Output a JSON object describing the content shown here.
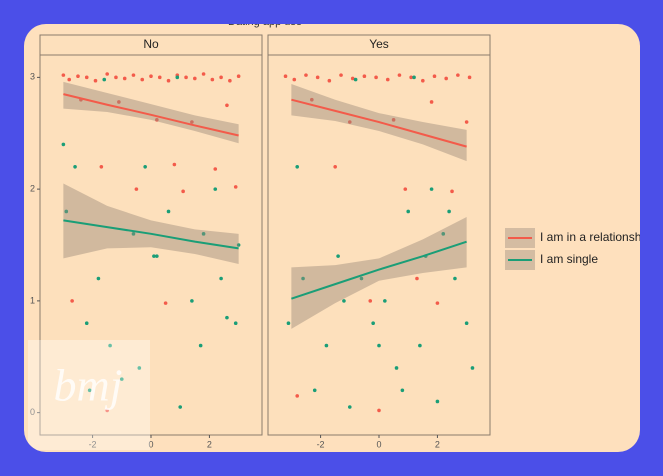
{
  "title": "Dating app use",
  "watermark": "bmj",
  "legend": [
    {
      "name": "I am in a relationship",
      "color": "#f35b4a"
    },
    {
      "name": "I am single",
      "color": "#1a9e77"
    }
  ],
  "chart_data": [
    {
      "type": "scatter",
      "title": "No",
      "xlim": [
        -3.8,
        3.8
      ],
      "ylim": [
        -0.2,
        3.2
      ],
      "xticks": [
        -2,
        0,
        2
      ],
      "yticks": [
        0,
        1,
        2,
        3
      ],
      "series": [
        {
          "x": [
            -3,
            -2.8,
            -2.5,
            -2.2,
            -1.9,
            -1.5,
            -1.2,
            -0.9,
            -0.6,
            -0.3,
            0,
            0.3,
            0.6,
            0.9,
            1.2,
            1.5,
            1.8,
            2.1,
            2.4,
            2.7,
            3,
            -2.4,
            -1.1,
            0.2,
            1.4,
            2.6,
            -1.7,
            0.8,
            2.2,
            -0.5,
            1.1,
            2.9,
            -2.7,
            0.5,
            -1.5
          ],
          "values": [
            3.02,
            2.98,
            3.01,
            3,
            2.97,
            3.03,
            3,
            2.99,
            3.02,
            2.98,
            3.01,
            3,
            2.97,
            3.02,
            3,
            2.99,
            3.03,
            2.98,
            3,
            2.97,
            3.01,
            2.8,
            2.78,
            2.62,
            2.6,
            2.75,
            2.2,
            2.22,
            2.18,
            2,
            1.98,
            2.02,
            1,
            0.98,
            0.02
          ],
          "fit_x": [
            -3,
            -1.5,
            0,
            1.5,
            3
          ],
          "fit": [
            2.85,
            2.755,
            2.665,
            2.57,
            2.48
          ],
          "fit_lower": [
            2.72,
            2.69,
            2.62,
            2.52,
            2.41
          ],
          "fit_upper": [
            2.96,
            2.86,
            2.76,
            2.66,
            2.58
          ]
        },
        {
          "x": [
            -3,
            -2.6,
            -2.2,
            -1.8,
            -1.4,
            -1,
            -0.6,
            -0.2,
            0.2,
            0.6,
            1,
            1.4,
            1.8,
            2.2,
            2.6,
            3,
            -2.9,
            -1.6,
            -0.4,
            0.9,
            2.4,
            -2.1,
            0.1,
            1.7,
            2.9
          ],
          "values": [
            2.4,
            2.2,
            0.8,
            1.2,
            0.6,
            0.3,
            1.6,
            2.2,
            1.4,
            1.8,
            0.05,
            1,
            1.6,
            2,
            0.85,
            1.5,
            1.8,
            2.98,
            0.4,
            3,
            1.2,
            0.2,
            1.4,
            0.6,
            0.8
          ],
          "fit_x": [
            -3,
            -1.5,
            0,
            1.5,
            3
          ],
          "fit": [
            1.72,
            1.66,
            1.6,
            1.53,
            1.47
          ],
          "fit_lower": [
            1.38,
            1.47,
            1.48,
            1.42,
            1.33
          ],
          "fit_upper": [
            2.05,
            1.85,
            1.72,
            1.64,
            1.6
          ]
        }
      ]
    },
    {
      "type": "scatter",
      "title": "Yes",
      "xlim": [
        -3.8,
        3.8
      ],
      "ylim": [
        -0.2,
        3.2
      ],
      "xticks": [
        -2,
        0,
        2
      ],
      "series": [
        {
          "x": [
            -3.2,
            -2.9,
            -2.5,
            -2.1,
            -1.7,
            -1.3,
            -0.9,
            -0.5,
            -0.1,
            0.3,
            0.7,
            1.1,
            1.5,
            1.9,
            2.3,
            2.7,
            3.1,
            -2.3,
            -1,
            0.5,
            1.8,
            3,
            -1.5,
            0.9,
            2.5,
            -0.3,
            2,
            -2.8,
            1.3,
            0
          ],
          "values": [
            3.01,
            2.98,
            3.02,
            3,
            2.97,
            3.02,
            2.99,
            3.01,
            3,
            2.98,
            3.02,
            3,
            2.97,
            3.01,
            2.99,
            3.02,
            3,
            2.8,
            2.6,
            2.62,
            2.78,
            2.6,
            2.2,
            2,
            1.98,
            1,
            0.98,
            0.15,
            1.2,
            0.02
          ],
          "fit_x": [
            -3,
            -1.5,
            0,
            1.5,
            3
          ],
          "fit": [
            2.8,
            2.7,
            2.6,
            2.49,
            2.38
          ],
          "fit_lower": [
            2.66,
            2.61,
            2.52,
            2.4,
            2.25
          ],
          "fit_upper": [
            2.94,
            2.8,
            2.68,
            2.6,
            2.53
          ]
        },
        {
          "x": [
            -3.1,
            -2.6,
            -2.2,
            -1.8,
            -1.4,
            -1,
            -0.6,
            -0.2,
            0.2,
            0.6,
            1,
            1.4,
            1.8,
            2.2,
            2.6,
            3,
            -2.8,
            -1.2,
            0,
            0.8,
            1.6,
            2.4,
            3.2,
            -0.8,
            1.2,
            2
          ],
          "values": [
            0.8,
            1.2,
            0.2,
            0.6,
            1.4,
            0.05,
            1.2,
            0.8,
            1,
            0.4,
            1.8,
            0.6,
            2,
            1.6,
            1.2,
            0.8,
            2.2,
            1,
            0.6,
            0.2,
            1.4,
            1.8,
            0.4,
            2.98,
            3,
            0.1
          ],
          "fit_x": [
            -3,
            -1.5,
            0,
            1.5,
            3
          ],
          "fit": [
            1.02,
            1.15,
            1.28,
            1.4,
            1.53
          ],
          "fit_lower": [
            0.75,
            0.98,
            1.18,
            1.25,
            1.3
          ],
          "fit_upper": [
            1.3,
            1.32,
            1.38,
            1.55,
            1.75
          ]
        }
      ]
    }
  ]
}
